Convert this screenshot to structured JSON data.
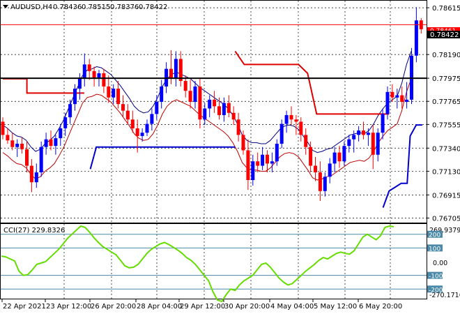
{
  "header": {
    "symbol": "AUDUSD,H4",
    "open": "0.78436",
    "high": "0.78515",
    "low": "0.78376",
    "close": "0.78422"
  },
  "colors": {
    "background": "#ffffff",
    "grid": "#000000",
    "bull_candle": "#0000ff",
    "bear_candle": "#ff0000",
    "upper_band": "#000080",
    "lower_band": "#c00000",
    "stop_red": "#e00000",
    "stop_blue": "#0000d0",
    "cci_line": "#66dd00",
    "cci_levels": "#4a8aa8",
    "horizontal_line": "#000000",
    "ask_line": "#ff0000"
  },
  "price_axis": {
    "labels": [
      "0.78615",
      "0.78190",
      "0.77975",
      "0.77765",
      "0.77555",
      "0.77340",
      "0.77130",
      "0.76915",
      "0.76705"
    ],
    "current_price": "0.78422",
    "ask_price": "0.78461"
  },
  "horizontal_line_value": 0.77975,
  "cci": {
    "label": "CCI(27) 229.8326",
    "axis_labels": [
      "269.9379",
      "0.00",
      "-270.1716"
    ],
    "levels": [
      "200",
      "100",
      "-100",
      "-200"
    ]
  },
  "time_axis": {
    "labels": [
      "22 Apr 2021",
      "23 Apr 12:00",
      "26 Apr 20:00",
      "28 Apr 04:00",
      "29 Apr 12:00",
      "30 Apr 20:00",
      "4 May 04:00",
      "5 May 12:00",
      "6 May 20:00"
    ]
  },
  "chart_data": {
    "type": "candlestick",
    "symbol": "AUDUSD",
    "timeframe": "H4",
    "y_range": [
      0.7667,
      0.7866
    ],
    "candles": [
      [
        0.7758,
        0.7762,
        0.7742,
        0.7746
      ],
      [
        0.7746,
        0.7752,
        0.7738,
        0.7741
      ],
      [
        0.7741,
        0.7748,
        0.7732,
        0.7735
      ],
      [
        0.7735,
        0.7742,
        0.7726,
        0.7738
      ],
      [
        0.7738,
        0.7744,
        0.7729,
        0.7733
      ],
      [
        0.7733,
        0.774,
        0.7712,
        0.7718
      ],
      [
        0.7718,
        0.7724,
        0.7694,
        0.7703
      ],
      [
        0.7703,
        0.772,
        0.7698,
        0.7712
      ],
      [
        0.7712,
        0.774,
        0.7708,
        0.7735
      ],
      [
        0.7735,
        0.7748,
        0.7728,
        0.7742
      ],
      [
        0.7742,
        0.775,
        0.7732,
        0.7736
      ],
      [
        0.7736,
        0.7746,
        0.7728,
        0.7743
      ],
      [
        0.7743,
        0.7756,
        0.7736,
        0.7752
      ],
      [
        0.7752,
        0.7766,
        0.7745,
        0.7762
      ],
      [
        0.7762,
        0.7778,
        0.7756,
        0.7774
      ],
      [
        0.7774,
        0.7792,
        0.7768,
        0.7788
      ],
      [
        0.7788,
        0.7802,
        0.7778,
        0.7798
      ],
      [
        0.7798,
        0.782,
        0.779,
        0.781
      ],
      [
        0.781,
        0.7815,
        0.7796,
        0.7804
      ],
      [
        0.7804,
        0.7808,
        0.779,
        0.7798
      ],
      [
        0.7798,
        0.7805,
        0.779,
        0.7802
      ],
      [
        0.7802,
        0.7806,
        0.7784,
        0.779
      ],
      [
        0.779,
        0.78,
        0.7775,
        0.778
      ],
      [
        0.778,
        0.7792,
        0.7774,
        0.7788
      ],
      [
        0.7788,
        0.7795,
        0.777,
        0.7774
      ],
      [
        0.7774,
        0.7782,
        0.7762,
        0.7768
      ],
      [
        0.7768,
        0.7774,
        0.7756,
        0.776
      ],
      [
        0.776,
        0.7768,
        0.7748,
        0.7752
      ],
      [
        0.7752,
        0.776,
        0.773,
        0.7745
      ],
      [
        0.7745,
        0.7752,
        0.774,
        0.7748
      ],
      [
        0.7748,
        0.776,
        0.7745,
        0.7756
      ],
      [
        0.7756,
        0.777,
        0.775,
        0.7765
      ],
      [
        0.7765,
        0.7782,
        0.776,
        0.7776
      ],
      [
        0.7776,
        0.7796,
        0.777,
        0.779
      ],
      [
        0.779,
        0.7812,
        0.7784,
        0.7806
      ],
      [
        0.7806,
        0.7823,
        0.7792,
        0.7798
      ],
      [
        0.7798,
        0.7822,
        0.779,
        0.7815
      ],
      [
        0.7815,
        0.7822,
        0.779,
        0.7795
      ],
      [
        0.7795,
        0.78,
        0.778,
        0.7786
      ],
      [
        0.7786,
        0.7796,
        0.777,
        0.7776
      ],
      [
        0.7776,
        0.7795,
        0.777,
        0.779
      ],
      [
        0.779,
        0.7798,
        0.7752,
        0.776
      ],
      [
        0.776,
        0.7775,
        0.7755,
        0.777
      ],
      [
        0.777,
        0.7782,
        0.7762,
        0.7778
      ],
      [
        0.7778,
        0.7786,
        0.7766,
        0.7772
      ],
      [
        0.7772,
        0.778,
        0.776,
        0.7764
      ],
      [
        0.7764,
        0.778,
        0.7758,
        0.7775
      ],
      [
        0.7775,
        0.7782,
        0.7762,
        0.7766
      ],
      [
        0.7766,
        0.7772,
        0.7755,
        0.776
      ],
      [
        0.776,
        0.7766,
        0.774,
        0.7746
      ],
      [
        0.7746,
        0.775,
        0.7728,
        0.7732
      ],
      [
        0.7732,
        0.7742,
        0.7696,
        0.7705
      ],
      [
        0.7705,
        0.7728,
        0.77,
        0.7722
      ],
      [
        0.7722,
        0.773,
        0.7712,
        0.7718
      ],
      [
        0.7718,
        0.7735,
        0.7714,
        0.7728
      ],
      [
        0.7728,
        0.7732,
        0.7712,
        0.772
      ],
      [
        0.772,
        0.773,
        0.7712,
        0.7722
      ],
      [
        0.7722,
        0.7742,
        0.7718,
        0.7738
      ],
      [
        0.7738,
        0.776,
        0.7734,
        0.7756
      ],
      [
        0.7756,
        0.7768,
        0.7748,
        0.7764
      ],
      [
        0.7764,
        0.7772,
        0.7755,
        0.776
      ],
      [
        0.776,
        0.7764,
        0.7746,
        0.7758
      ],
      [
        0.7758,
        0.7762,
        0.774,
        0.7746
      ],
      [
        0.7746,
        0.7752,
        0.7728,
        0.7735
      ],
      [
        0.7735,
        0.774,
        0.7712,
        0.7718
      ],
      [
        0.7718,
        0.7726,
        0.7704,
        0.7712
      ],
      [
        0.7712,
        0.7722,
        0.7686,
        0.7695
      ],
      [
        0.7695,
        0.7712,
        0.769,
        0.7708
      ],
      [
        0.7708,
        0.7725,
        0.7702,
        0.772
      ],
      [
        0.772,
        0.7735,
        0.7712,
        0.773
      ],
      [
        0.773,
        0.7736,
        0.7716,
        0.7722
      ],
      [
        0.7722,
        0.774,
        0.7718,
        0.7736
      ],
      [
        0.7736,
        0.7746,
        0.773,
        0.7742
      ],
      [
        0.7742,
        0.775,
        0.773,
        0.7746
      ],
      [
        0.7746,
        0.7754,
        0.774,
        0.775
      ],
      [
        0.775,
        0.7758,
        0.7742,
        0.7746
      ],
      [
        0.7746,
        0.7752,
        0.7736,
        0.7748
      ],
      [
        0.7748,
        0.7755,
        0.7715,
        0.7728
      ],
      [
        0.7728,
        0.7752,
        0.7722,
        0.7748
      ],
      [
        0.7748,
        0.777,
        0.7742,
        0.7765
      ],
      [
        0.7765,
        0.779,
        0.776,
        0.7785
      ],
      [
        0.7785,
        0.7792,
        0.7776,
        0.778
      ],
      [
        0.778,
        0.7788,
        0.777,
        0.7782
      ],
      [
        0.7782,
        0.779,
        0.777,
        0.7776
      ],
      [
        0.7776,
        0.7794,
        0.777,
        0.7778
      ],
      [
        0.7778,
        0.7825,
        0.7774,
        0.7818
      ],
      [
        0.7818,
        0.7862,
        0.7812,
        0.785
      ],
      [
        0.785,
        0.7852,
        0.7838,
        0.7842
      ]
    ],
    "upper_band": [
      0.7755,
      0.7752,
      0.7748,
      0.7745,
      0.7744,
      0.7741,
      0.7735,
      0.7731,
      0.7733,
      0.7738,
      0.7741,
      0.7745,
      0.7752,
      0.776,
      0.777,
      0.778,
      0.779,
      0.78,
      0.7805,
      0.7806,
      0.7808,
      0.7807,
      0.7804,
      0.7801,
      0.7796,
      0.7791,
      0.7785,
      0.7779,
      0.7772,
      0.7768,
      0.7766,
      0.7767,
      0.7772,
      0.778,
      0.779,
      0.7797,
      0.7801,
      0.7803,
      0.7801,
      0.7799,
      0.7797,
      0.7793,
      0.7789,
      0.7786,
      0.7783,
      0.778,
      0.7777,
      0.7774,
      0.777,
      0.7764,
      0.7756,
      0.7746,
      0.7741,
      0.7739,
      0.7739,
      0.7738,
      0.7738,
      0.7741,
      0.7746,
      0.7751,
      0.7754,
      0.7755,
      0.7754,
      0.7751,
      0.7745,
      0.7739,
      0.7732,
      0.773,
      0.7731,
      0.7733,
      0.7734,
      0.7737,
      0.774,
      0.7743,
      0.7746,
      0.7747,
      0.7748,
      0.7747,
      0.775,
      0.7756,
      0.7764,
      0.777,
      0.7775,
      0.7778,
      0.7781,
      0.7793,
      0.781,
      0.7822
    ],
    "lower_band": [
      0.773,
      0.7727,
      0.7723,
      0.772,
      0.7719,
      0.7716,
      0.771,
      0.7706,
      0.7708,
      0.7713,
      0.7716,
      0.772,
      0.7727,
      0.7735,
      0.7745,
      0.7755,
      0.7765,
      0.7775,
      0.778,
      0.7781,
      0.7783,
      0.7782,
      0.7779,
      0.7776,
      0.7771,
      0.7766,
      0.776,
      0.7754,
      0.7747,
      0.7743,
      0.7741,
      0.7742,
      0.7747,
      0.7755,
      0.7765,
      0.7772,
      0.7776,
      0.7778,
      0.7776,
      0.7774,
      0.7772,
      0.7768,
      0.7764,
      0.7761,
      0.7758,
      0.7755,
      0.7752,
      0.7749,
      0.7745,
      0.7739,
      0.7731,
      0.7721,
      0.7716,
      0.7714,
      0.7714,
      0.7713,
      0.7713,
      0.7716,
      0.7721,
      0.7726,
      0.7729,
      0.773,
      0.7729,
      0.7726,
      0.772,
      0.7714,
      0.7707,
      0.7705,
      0.7706,
      0.7708,
      0.7709,
      0.7712,
      0.7715,
      0.7718,
      0.7721,
      0.7722,
      0.7723,
      0.7722,
      0.7725,
      0.7731,
      0.7739,
      0.7745,
      0.775,
      0.7753,
      0.7756,
      0.7768,
      0.7785,
      0.7797
    ],
    "stop_red": [
      [
        [
          0,
          0.7797
        ],
        [
          8,
          0.7797
        ],
        [
          8,
          0.7784
        ],
        [
          27,
          0.7784
        ]
      ],
      [
        [
          77,
          0.7822
        ],
        [
          80,
          0.781
        ],
        [
          81,
          0.781
        ],
        [
          98,
          0.781
        ],
        [
          101,
          0.7802
        ],
        [
          104,
          0.7765
        ],
        [
          128,
          0.7765
        ]
      ]
    ],
    "stop_blue": [
      [
        [
          29,
          0.7715
        ],
        [
          31,
          0.7735
        ],
        [
          77,
          0.7735
        ]
      ],
      [
        [
          126,
          0.768
        ],
        [
          128,
          0.7695
        ],
        [
          132,
          0.7702
        ],
        [
          134,
          0.7702
        ],
        [
          135,
          0.7745
        ],
        [
          137,
          0.7755
        ],
        [
          139,
          0.7755
        ]
      ]
    ],
    "cci_values": [
      40,
      35,
      20,
      5,
      -70,
      -100,
      -95,
      -60,
      -20,
      -10,
      0,
      30,
      60,
      90,
      130,
      170,
      200,
      230,
      260,
      250,
      215,
      175,
      140,
      110,
      90,
      70,
      50,
      10,
      -30,
      -45,
      -40,
      -20,
      20,
      60,
      90,
      110,
      130,
      140,
      125,
      105,
      85,
      60,
      30,
      10,
      -20,
      -60,
      -100,
      -140,
      -220,
      -280,
      -290,
      -240,
      -200,
      -210,
      -170,
      -140,
      -120,
      -100,
      -60,
      -20,
      -10,
      -40,
      -80,
      -120,
      -150,
      -170,
      -160,
      -130,
      -100,
      -70,
      -45,
      -20,
      10,
      30,
      20,
      40,
      60,
      70,
      60,
      55,
      80,
      130,
      180,
      200,
      180,
      160,
      190,
      250,
      260,
      255
    ],
    "cci_x": [
      0,
      3,
      6,
      9,
      12,
      15,
      18,
      21,
      24,
      27,
      30,
      33,
      36,
      39,
      42,
      45,
      48,
      51,
      54,
      57,
      60,
      63,
      66,
      69,
      72,
      75,
      78,
      81,
      84,
      87,
      90,
      93,
      96,
      99,
      102,
      105,
      108,
      111,
      114,
      117,
      120,
      123,
      126,
      129,
      132,
      135,
      138,
      141,
      144,
      147,
      150,
      153,
      156,
      159,
      162,
      165,
      168,
      171,
      174,
      177,
      180,
      183,
      186,
      189,
      192,
      195,
      198,
      201,
      204,
      207,
      210,
      213,
      216,
      219,
      222,
      225,
      228,
      231,
      234,
      237,
      240,
      243,
      246,
      249,
      252,
      255,
      258,
      261,
      264,
      267
    ]
  }
}
